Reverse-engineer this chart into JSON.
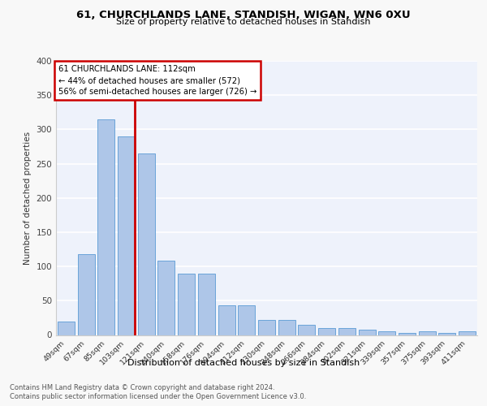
{
  "title1": "61, CHURCHLANDS LANE, STANDISH, WIGAN, WN6 0XU",
  "title2": "Size of property relative to detached houses in Standish",
  "xlabel": "Distribution of detached houses by size in Standish",
  "ylabel": "Number of detached properties",
  "footnote1": "Contains HM Land Registry data © Crown copyright and database right 2024.",
  "footnote2": "Contains public sector information licensed under the Open Government Licence v3.0.",
  "annotation_line1": "61 CHURCHLANDS LANE: 112sqm",
  "annotation_line2": "← 44% of detached houses are smaller (572)",
  "annotation_line3": "56% of semi-detached houses are larger (726) →",
  "bar_color": "#aec6e8",
  "bar_edge_color": "#5b9bd5",
  "vline_color": "#cc0000",
  "annotation_box_color": "#cc0000",
  "categories": [
    "49sqm",
    "67sqm",
    "85sqm",
    "103sqm",
    "121sqm",
    "140sqm",
    "158sqm",
    "176sqm",
    "194sqm",
    "212sqm",
    "230sqm",
    "248sqm",
    "266sqm",
    "284sqm",
    "302sqm",
    "321sqm",
    "339sqm",
    "357sqm",
    "375sqm",
    "393sqm",
    "411sqm"
  ],
  "values": [
    20,
    118,
    315,
    290,
    265,
    108,
    90,
    90,
    43,
    43,
    22,
    22,
    15,
    10,
    10,
    8,
    5,
    3,
    5,
    3,
    5
  ],
  "ylim": [
    0,
    400
  ],
  "yticks": [
    0,
    50,
    100,
    150,
    200,
    250,
    300,
    350,
    400
  ],
  "vline_x": 3.42,
  "background_color": "#eef2fb",
  "grid_color": "#ffffff",
  "fig_background": "#f8f8f8"
}
